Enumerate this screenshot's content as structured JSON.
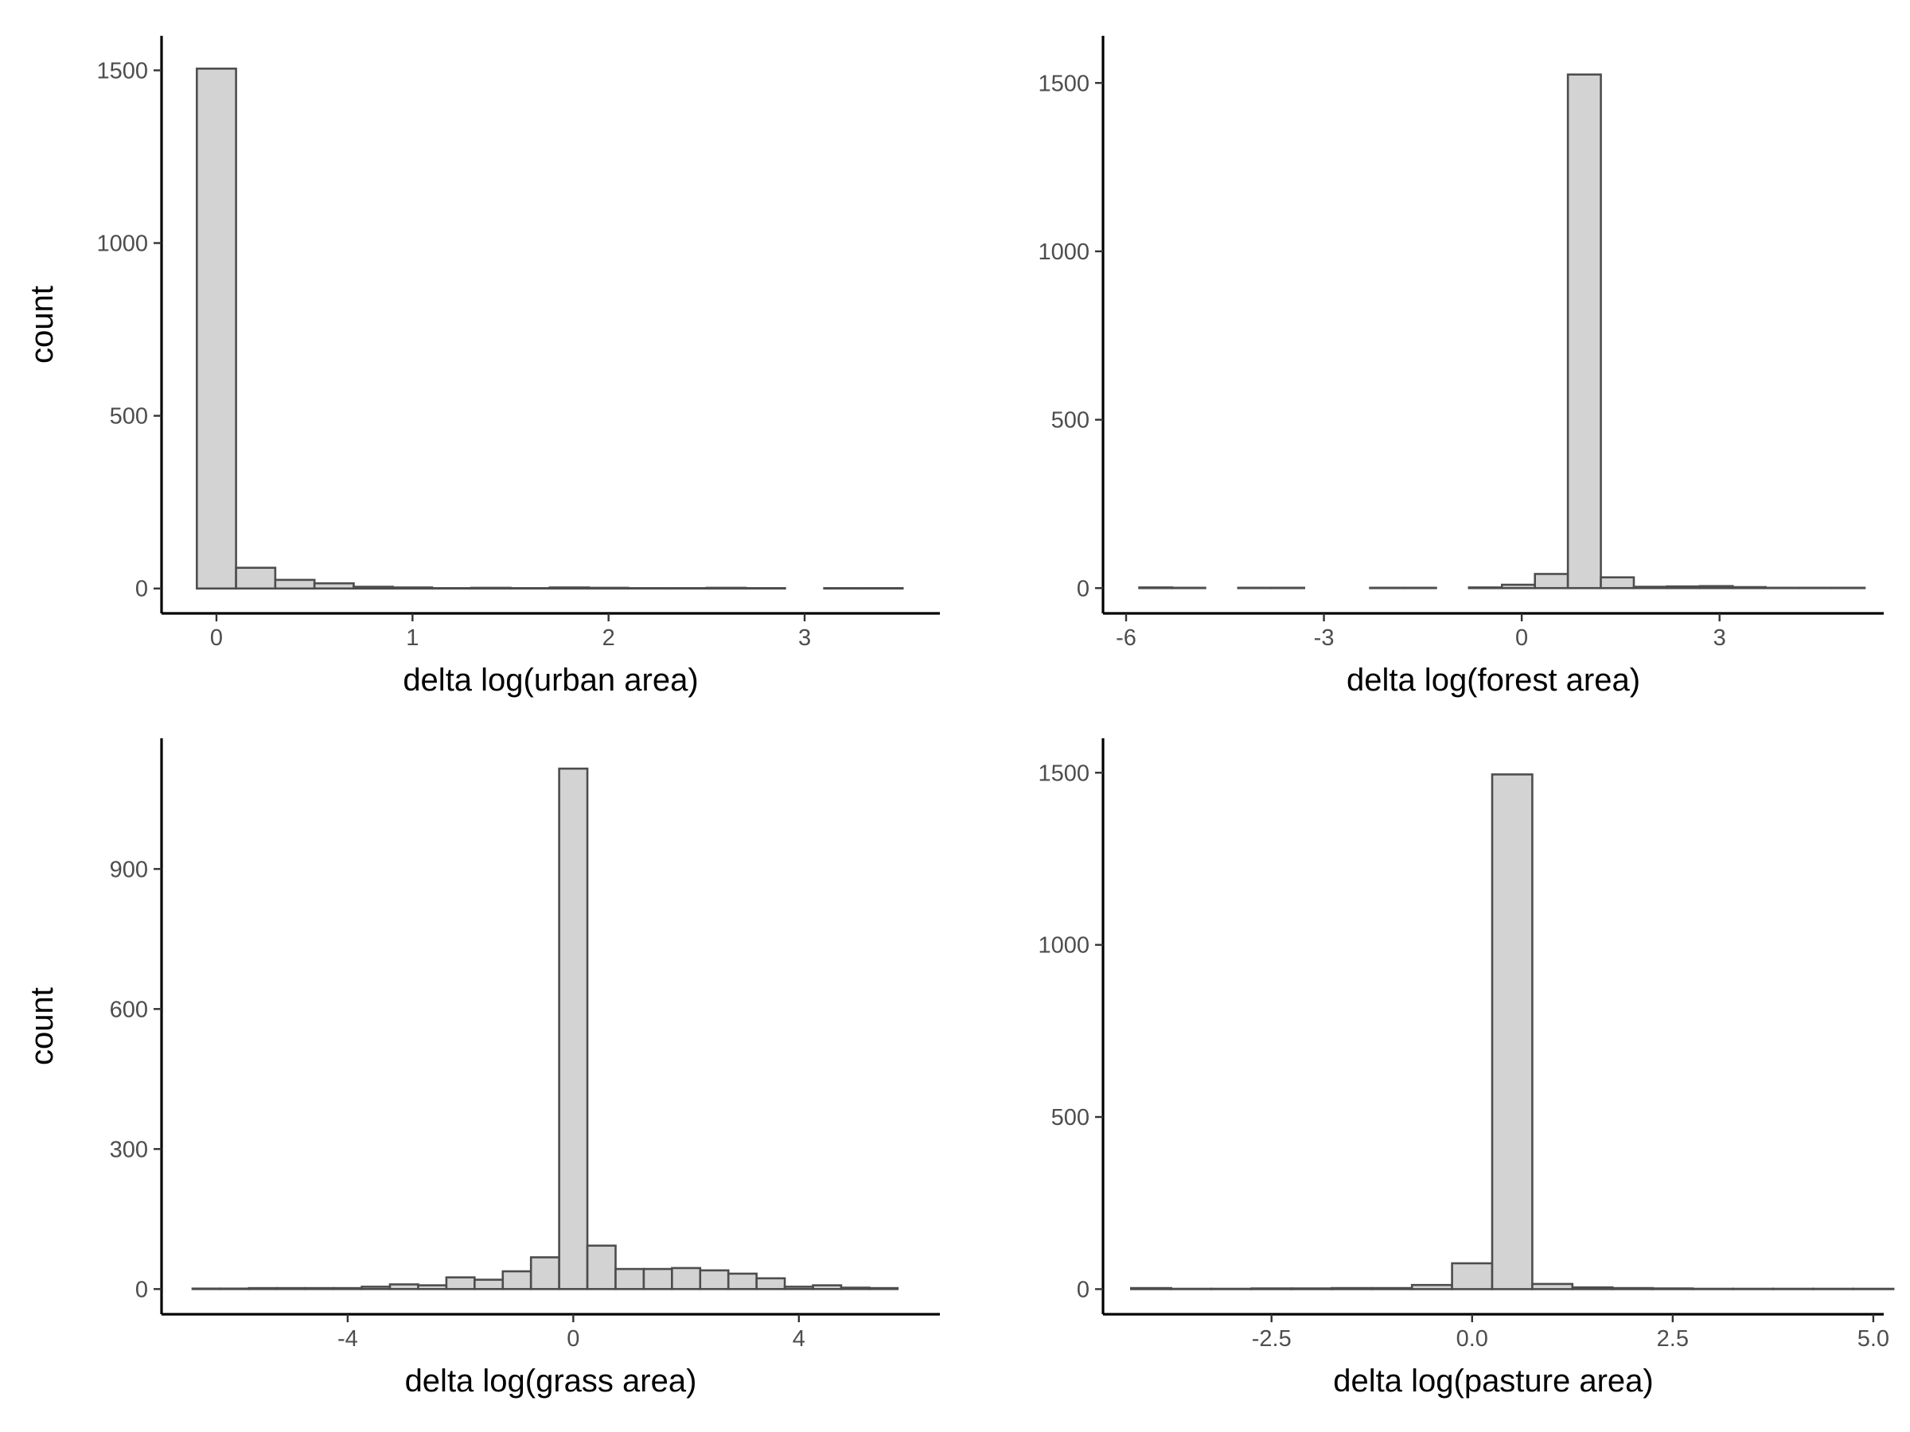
{
  "colors": {
    "bar_fill": "#d3d3d3",
    "bar_outline": "#4d4d4d",
    "axis": "#000000",
    "tick_text": "#4d4d4d"
  },
  "chart_data": [
    {
      "type": "bar",
      "id": "urban",
      "xlabel": "delta log(urban area)",
      "ylabel": "count",
      "xlim": [
        -0.28,
        3.69
      ],
      "ylim": [
        -72,
        1600
      ],
      "xticks": [
        0,
        1,
        2,
        3
      ],
      "xtick_labels": [
        "0",
        "1",
        "2",
        "3"
      ],
      "yticks": [
        0,
        500,
        1000,
        1500
      ],
      "ytick_labels": [
        "0",
        "500",
        "1000",
        "1500"
      ],
      "bin_start": -0.1,
      "bin_width": 0.2,
      "values": [
        1505,
        60,
        25,
        15,
        5,
        3,
        1,
        2,
        1,
        3,
        2,
        1,
        1,
        2,
        1,
        0,
        1,
        1
      ]
    },
    {
      "type": "bar",
      "id": "forest",
      "xlabel": "delta log(forest area)",
      "ylabel": "",
      "xlim": [
        -6.35,
        5.49
      ],
      "ylim": [
        -75,
        1640
      ],
      "xticks": [
        -6,
        -3,
        0,
        3
      ],
      "xtick_labels": [
        "-6",
        "-3",
        "0",
        "3"
      ],
      "yticks": [
        0,
        500,
        1000,
        1500
      ],
      "ytick_labels": [
        "0",
        "500",
        "1000",
        "1500"
      ],
      "bin_start": -5.8,
      "bin_width": 0.5,
      "values": [
        2,
        1,
        0,
        1,
        1,
        0,
        0,
        1,
        1,
        0,
        2,
        10,
        42,
        1525,
        32,
        4,
        5,
        6,
        3,
        1,
        1,
        1
      ]
    },
    {
      "type": "bar",
      "id": "grass",
      "xlabel": "delta log(grass area)",
      "ylabel": "count",
      "xlim": [
        -7.3,
        6.5
      ],
      "ylim": [
        -54,
        1180
      ],
      "xticks": [
        -4,
        0,
        4
      ],
      "xtick_labels": [
        "-4",
        "0",
        "4"
      ],
      "yticks": [
        0,
        300,
        600,
        900
      ],
      "ytick_labels": [
        "0",
        "300",
        "600",
        "900"
      ],
      "bin_start": -6.75,
      "bin_width": 0.5,
      "values": [
        1,
        1,
        2,
        2,
        2,
        2,
        5,
        10,
        8,
        25,
        20,
        38,
        68,
        1115,
        93,
        43,
        43,
        45,
        40,
        33,
        23,
        5,
        8,
        3,
        2
      ]
    },
    {
      "type": "bar",
      "id": "pasture",
      "xlabel": "delta log(pasture area)",
      "ylabel": "",
      "xlim": [
        -4.6,
        5.13
      ],
      "ylim": [
        -73,
        1600
      ],
      "xticks": [
        -2.5,
        0.0,
        2.5,
        5.0
      ],
      "xtick_labels": [
        "-2.5",
        "0.0",
        "2.5",
        "5.0"
      ],
      "yticks": [
        0,
        500,
        1000,
        1500
      ],
      "ytick_labels": [
        "0",
        "500",
        "1000",
        "1500"
      ],
      "bin_start": -4.25,
      "bin_width": 0.5,
      "values": [
        3,
        1,
        1,
        2,
        2,
        3,
        3,
        12,
        75,
        1495,
        15,
        5,
        3,
        2,
        1,
        1,
        1,
        1,
        1
      ]
    }
  ]
}
